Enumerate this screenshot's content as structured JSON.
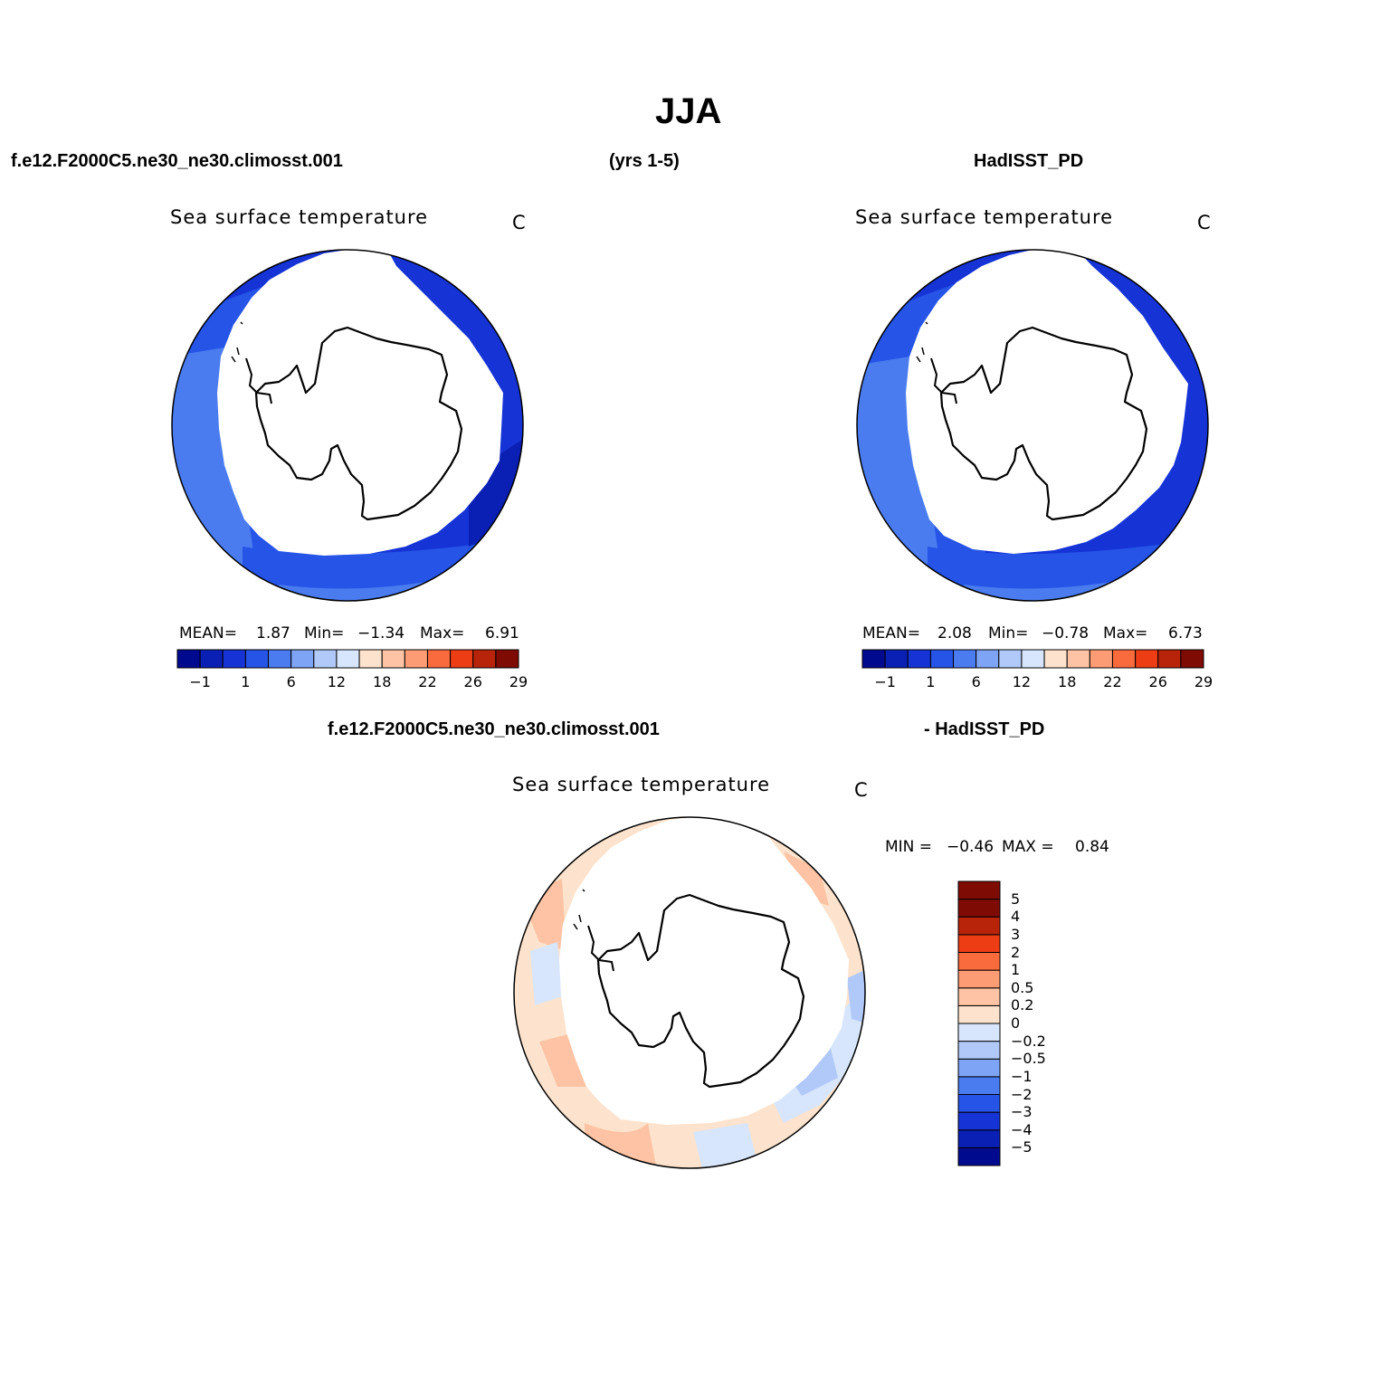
{
  "figure": {
    "title": "JJA",
    "top_left_header": "f.e12.F2000C5.ne30_ne30.climosst.001",
    "top_center_header": "(yrs 1-5)",
    "top_right_header": "HadISST_PD",
    "diff_left_header": "f.e12.F2000C5.ne30_ne30.climosst.001",
    "diff_right_header": "- HadISST_PD"
  },
  "panels": {
    "left": {
      "variable": "Sea surface temperature",
      "units": "C",
      "mean_label": "MEAN=",
      "mean": "1.87",
      "min_label": "Min=",
      "min": "−1.34",
      "max_label": "Max=",
      "max": "6.91"
    },
    "right": {
      "variable": "Sea surface temperature",
      "units": "C",
      "mean_label": "MEAN=",
      "mean": "2.08",
      "min_label": "Min=",
      "min": "−0.78",
      "max_label": "Max=",
      "max": "6.73"
    },
    "diff": {
      "variable": "Sea surface temperature",
      "units": "C",
      "min_label": "MIN =",
      "min": "−0.46",
      "max_label": "MAX =",
      "max": "0.84"
    }
  },
  "colorbars": {
    "sst": {
      "colors": [
        "#000a8f",
        "#0a1fb4",
        "#1634d6",
        "#2554e6",
        "#4a7cf0",
        "#7ea4f5",
        "#b1c9f8",
        "#d7e6fc",
        "#fde3cd",
        "#fdc3a4",
        "#fc9c74",
        "#f96a3d",
        "#ec3d14",
        "#b8240a",
        "#7e0c04"
      ],
      "tick_labels": [
        "−1",
        "1",
        "6",
        "12",
        "18",
        "22",
        "26",
        "29"
      ]
    },
    "diff": {
      "colors": [
        "#000a8f",
        "#0a1fb4",
        "#1634d6",
        "#2554e6",
        "#4a7cf0",
        "#7ea4f5",
        "#b1c9f8",
        "#d7e6fc",
        "#fde3cd",
        "#fdc3a4",
        "#fc9c74",
        "#f96a3d",
        "#ec3d14",
        "#b8240a",
        "#7e0c04"
      ],
      "tick_labels": [
        "−5",
        "−4",
        "−3",
        "−2",
        "−1",
        "−0.5",
        "−0.2",
        "0",
        "0.2",
        "0.5",
        "1",
        "2",
        "3",
        "4",
        "5"
      ]
    }
  },
  "colors": {
    "ocean_deep": "#1634d6",
    "ocean_mid": "#2554e6",
    "ocean_light": "#4a7cf0",
    "diff_warm": "#fdc3a4",
    "diff_pale": "#fde3cd",
    "diff_cool": "#d7e6fc"
  },
  "map_icons": [
    "antarctica-coastline-icon",
    "sea-ice-mask-icon"
  ]
}
